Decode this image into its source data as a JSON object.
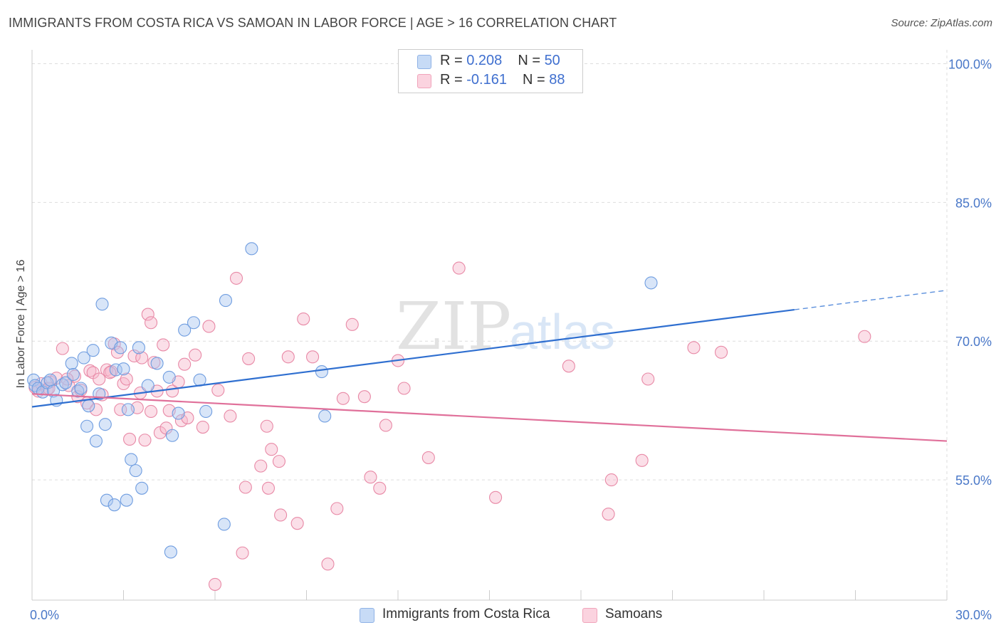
{
  "header": {
    "title": "IMMIGRANTS FROM COSTA RICA VS SAMOAN IN LABOR FORCE | AGE > 16 CORRELATION CHART",
    "source": "Source: ZipAtlas.com"
  },
  "watermark": {
    "zip": "ZIP",
    "atlas": "atlas"
  },
  "legend_top": {
    "rows": [
      {
        "r_label": "R = ",
        "r_value": "0.208",
        "n_label": "N = ",
        "n_value": "50",
        "color": "#a8c6f0"
      },
      {
        "r_label": "R = ",
        "r_value": "-0.161",
        "n_label": "N = ",
        "n_value": "88",
        "color": "#f7b8cb"
      }
    ]
  },
  "legend_bottom": [
    {
      "label": "Immigrants from Costa Rica",
      "color": "#a8c6f0"
    },
    {
      "label": "Samoans",
      "color": "#f7b8cb"
    }
  ],
  "chart_data": {
    "type": "scatter",
    "title": "IMMIGRANTS FROM COSTA RICA VS SAMOAN IN LABOR FORCE | AGE > 16 CORRELATION CHART",
    "ylabel": "In Labor Force | Age > 16",
    "xlabel": "",
    "xlim": [
      0,
      30
    ],
    "ylim": [
      42,
      101.5
    ],
    "x_tick_labels": [
      {
        "value": 0,
        "label": "0.0%"
      },
      {
        "value": 30,
        "label": "30.0%"
      }
    ],
    "y_tick_labels": [
      {
        "value": 100,
        "label": "100.0%"
      },
      {
        "value": 85,
        "label": "85.0%"
      },
      {
        "value": 70,
        "label": "70.0%"
      },
      {
        "value": 55,
        "label": "55.0%"
      }
    ],
    "grid": true,
    "legend_position": "top-center",
    "series": [
      {
        "name": "Immigrants from Costa Rica",
        "color": "#6f9de0",
        "fill": "#a8c6f0",
        "trend": {
          "x0": 0,
          "y0": 62.9,
          "x1": 25,
          "y1": 73.4,
          "dashed_to_x": 30,
          "dashed_to_y": 75.5
        },
        "points": [
          [
            0.05,
            65.8
          ],
          [
            0.1,
            65.2
          ],
          [
            0.2,
            64.9
          ],
          [
            0.35,
            64.5
          ],
          [
            0.5,
            65.5
          ],
          [
            0.6,
            65.8
          ],
          [
            0.7,
            64.6
          ],
          [
            0.8,
            63.6
          ],
          [
            1.0,
            65.3
          ],
          [
            1.1,
            65.5
          ],
          [
            1.3,
            67.6
          ],
          [
            1.35,
            66.4
          ],
          [
            1.5,
            64.6
          ],
          [
            1.6,
            64.9
          ],
          [
            1.7,
            68.2
          ],
          [
            1.85,
            63.0
          ],
          [
            1.8,
            60.8
          ],
          [
            2.0,
            69.0
          ],
          [
            2.1,
            59.2
          ],
          [
            2.2,
            64.3
          ],
          [
            2.3,
            74.0
          ],
          [
            2.4,
            61.0
          ],
          [
            2.45,
            52.8
          ],
          [
            2.6,
            69.8
          ],
          [
            2.7,
            52.3
          ],
          [
            2.75,
            66.9
          ],
          [
            2.9,
            69.3
          ],
          [
            3.0,
            67.0
          ],
          [
            3.1,
            52.8
          ],
          [
            3.15,
            62.6
          ],
          [
            3.25,
            57.2
          ],
          [
            3.4,
            56.0
          ],
          [
            3.5,
            69.3
          ],
          [
            3.6,
            54.1
          ],
          [
            3.8,
            65.2
          ],
          [
            4.1,
            67.6
          ],
          [
            4.6,
            59.8
          ],
          [
            4.55,
            47.2
          ],
          [
            4.5,
            66.1
          ],
          [
            4.8,
            62.2
          ],
          [
            5.0,
            71.2
          ],
          [
            5.3,
            72.0
          ],
          [
            5.5,
            65.8
          ],
          [
            5.7,
            62.4
          ],
          [
            6.3,
            50.2
          ],
          [
            6.35,
            74.4
          ],
          [
            7.2,
            80.0
          ],
          [
            9.5,
            66.7
          ],
          [
            9.6,
            61.9
          ],
          [
            20.3,
            76.3
          ]
        ]
      },
      {
        "name": "Samoans",
        "color": "#e889a6",
        "fill": "#f7b8cb",
        "trend": {
          "x0": 0,
          "y0": 64.3,
          "x1": 30,
          "y1": 59.2
        },
        "points": [
          [
            0.1,
            65.0
          ],
          [
            0.2,
            64.6
          ],
          [
            0.3,
            65.4
          ],
          [
            0.5,
            64.8
          ],
          [
            0.6,
            65.6
          ],
          [
            0.8,
            66.0
          ],
          [
            1.0,
            69.2
          ],
          [
            1.2,
            65.2
          ],
          [
            1.4,
            66.2
          ],
          [
            1.5,
            64.0
          ],
          [
            1.6,
            64.7
          ],
          [
            1.8,
            63.3
          ],
          [
            1.9,
            66.8
          ],
          [
            2.0,
            66.6
          ],
          [
            2.1,
            62.6
          ],
          [
            2.2,
            65.9
          ],
          [
            2.3,
            64.2
          ],
          [
            2.45,
            66.9
          ],
          [
            2.6,
            66.7
          ],
          [
            2.7,
            69.7
          ],
          [
            2.8,
            68.8
          ],
          [
            2.9,
            62.6
          ],
          [
            3.0,
            65.4
          ],
          [
            3.1,
            65.9
          ],
          [
            3.2,
            59.4
          ],
          [
            3.35,
            68.4
          ],
          [
            3.45,
            62.8
          ],
          [
            3.55,
            64.4
          ],
          [
            3.6,
            68.2
          ],
          [
            3.7,
            59.3
          ],
          [
            3.8,
            72.9
          ],
          [
            3.9,
            72.0
          ],
          [
            4.0,
            67.7
          ],
          [
            4.1,
            64.6
          ],
          [
            4.2,
            60.1
          ],
          [
            4.3,
            69.6
          ],
          [
            4.5,
            62.5
          ],
          [
            4.6,
            64.6
          ],
          [
            4.8,
            65.6
          ],
          [
            4.9,
            61.4
          ],
          [
            5.0,
            67.5
          ],
          [
            5.1,
            61.7
          ],
          [
            5.35,
            68.5
          ],
          [
            5.6,
            60.7
          ],
          [
            5.8,
            71.6
          ],
          [
            6.1,
            64.7
          ],
          [
            6.5,
            61.9
          ],
          [
            6.7,
            76.8
          ],
          [
            6.9,
            47.1
          ],
          [
            7.0,
            54.2
          ],
          [
            7.1,
            68.1
          ],
          [
            7.5,
            56.5
          ],
          [
            7.7,
            60.8
          ],
          [
            7.75,
            54.1
          ],
          [
            7.85,
            58.3
          ],
          [
            8.1,
            57.0
          ],
          [
            8.15,
            51.2
          ],
          [
            8.4,
            68.3
          ],
          [
            8.7,
            50.3
          ],
          [
            8.9,
            72.4
          ],
          [
            9.2,
            68.3
          ],
          [
            9.7,
            45.9
          ],
          [
            10.0,
            51.9
          ],
          [
            10.2,
            63.8
          ],
          [
            10.5,
            71.8
          ],
          [
            10.9,
            64.0
          ],
          [
            11.1,
            55.3
          ],
          [
            11.4,
            54.1
          ],
          [
            11.6,
            60.9
          ],
          [
            12.0,
            67.9
          ],
          [
            12.2,
            64.9
          ],
          [
            13.0,
            57.4
          ],
          [
            14.0,
            77.9
          ],
          [
            15.2,
            53.1
          ],
          [
            17.6,
            67.3
          ],
          [
            18.9,
            51.3
          ],
          [
            19.0,
            55.0
          ],
          [
            20.0,
            57.1
          ],
          [
            20.2,
            65.9
          ],
          [
            21.7,
            69.3
          ],
          [
            22.6,
            68.8
          ],
          [
            27.3,
            70.5
          ],
          [
            0.55,
            64.9
          ],
          [
            1.15,
            65.9
          ],
          [
            2.55,
            66.6
          ],
          [
            6.0,
            43.7
          ],
          [
            3.9,
            62.4
          ],
          [
            4.4,
            60.6
          ]
        ]
      }
    ]
  }
}
